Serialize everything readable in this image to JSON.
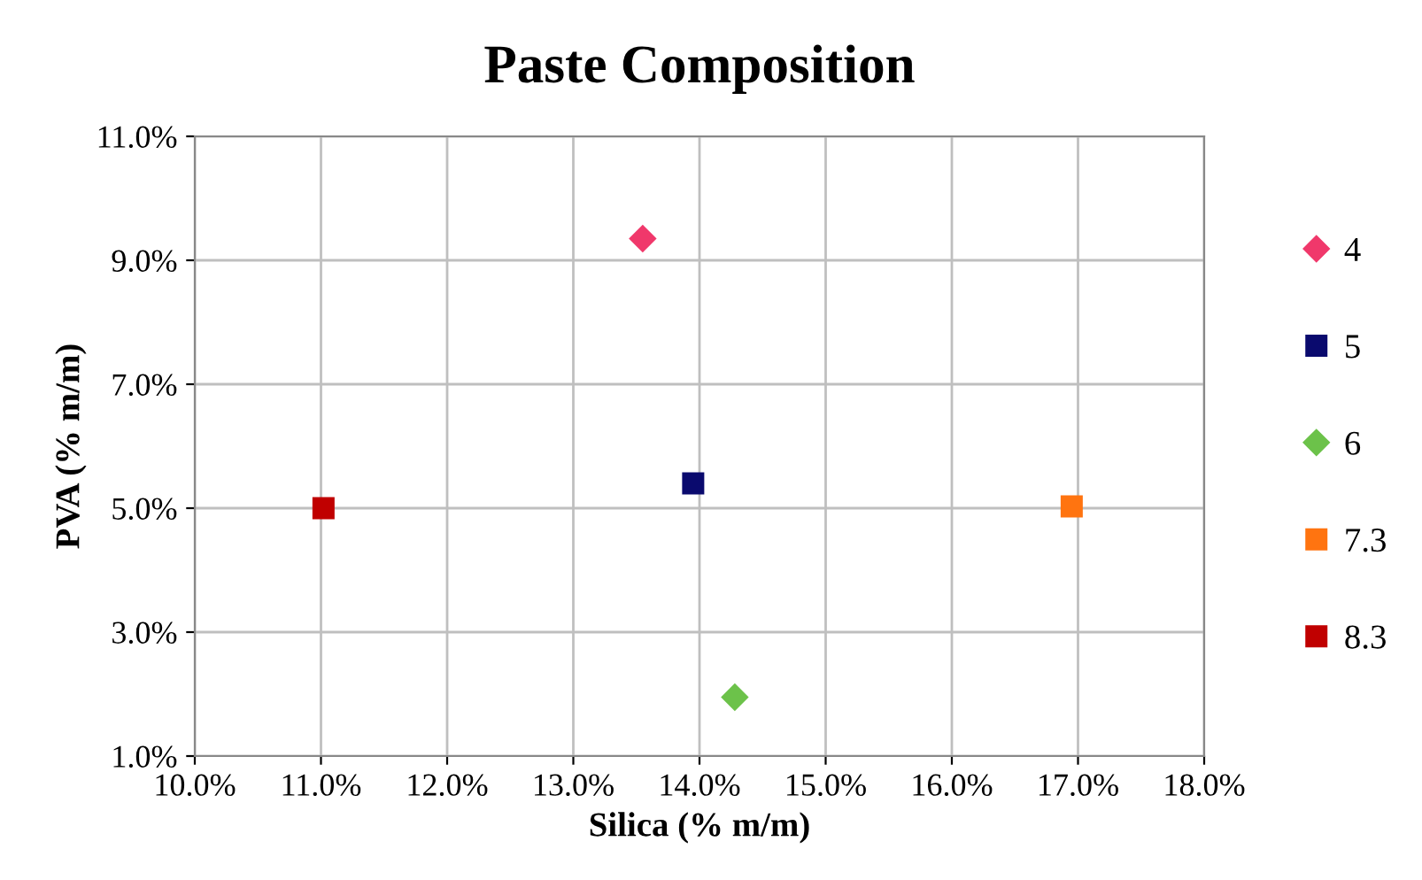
{
  "chart_data": {
    "type": "scatter",
    "title": "Paste Composition",
    "xlabel": "Silica (% m/m)",
    "ylabel": "PVA (% m/m)",
    "series": [
      {
        "name": "4",
        "color": "#f0386b",
        "marker": "diamond",
        "x": [
          13.55
        ],
        "values": [
          9.35
        ]
      },
      {
        "name": "5",
        "color": "#0a0a6e",
        "marker": "square",
        "x": [
          13.95
        ],
        "values": [
          5.4
        ]
      },
      {
        "name": "6",
        "color": "#6cc24a",
        "marker": "diamond",
        "x": [
          14.28
        ],
        "values": [
          1.95
        ]
      },
      {
        "name": "7.3",
        "color": "#ff7410",
        "marker": "square",
        "x": [
          16.95
        ],
        "values": [
          5.03
        ]
      },
      {
        "name": "8.3",
        "color": "#c00000",
        "marker": "square",
        "x": [
          11.02
        ],
        "values": [
          5.0
        ]
      }
    ],
    "xlim": [
      10,
      18
    ],
    "ylim": [
      1,
      11
    ],
    "xticks": [
      {
        "value": 10,
        "label": "10.0%"
      },
      {
        "value": 11,
        "label": "11.0%"
      },
      {
        "value": 12,
        "label": "12.0%"
      },
      {
        "value": 13,
        "label": "13.0%"
      },
      {
        "value": 14,
        "label": "14.0%"
      },
      {
        "value": 15,
        "label": "15.0%"
      },
      {
        "value": 16,
        "label": "16.0%"
      },
      {
        "value": 17,
        "label": "17.0%"
      },
      {
        "value": 18,
        "label": "18.0%"
      }
    ],
    "yticks": [
      {
        "value": 1,
        "label": "1.0%"
      },
      {
        "value": 3,
        "label": "3.0%"
      },
      {
        "value": 5,
        "label": "5.0%"
      },
      {
        "value": 7,
        "label": "7.0%"
      },
      {
        "value": 9,
        "label": "9.0%"
      },
      {
        "value": 11,
        "label": "11.0%"
      }
    ],
    "grid": true,
    "legend": "right"
  }
}
